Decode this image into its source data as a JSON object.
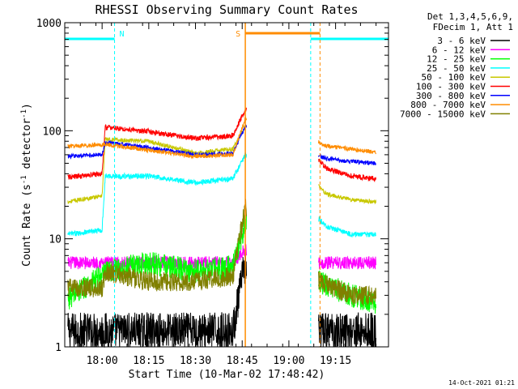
{
  "chart_data": {
    "type": "line",
    "title": "RHESSI Observing Summary Count Rates",
    "xlabel": "Start Time (10-Mar-02 17:48:42)",
    "ylabel_main": "Count Rate (s",
    "ylabel_sup1": "-1",
    "ylabel_mid": " detector",
    "ylabel_sup2": "-1",
    "ylabel_end": ")",
    "yscale": "log",
    "ylim": [
      1,
      1000
    ],
    "xlim_minutes": [
      1068,
      1172
    ],
    "x_ticks": [
      {
        "label": "18:00",
        "value": 1080
      },
      {
        "label": "18:15",
        "value": 1095
      },
      {
        "label": "18:30",
        "value": 1110
      },
      {
        "label": "18:45",
        "value": 1125
      },
      {
        "label": "19:00",
        "value": 1140
      },
      {
        "label": "19:15",
        "value": 1155
      }
    ],
    "y_ticks": [
      {
        "label": "1",
        "value": 1
      },
      {
        "label": "10",
        "value": 10
      },
      {
        "label": "100",
        "value": 100
      },
      {
        "label": "1000",
        "value": 1000
      }
    ],
    "legend_header": [
      "Det 1,3,4,5,6,9,",
      "FDecim 1, Att 1"
    ],
    "legend_placement": "right",
    "series": [
      {
        "name": "3 - 6 keV",
        "color": "#000000",
        "x": [
          1069,
          1082,
          1095,
          1110,
          1122,
          1124,
          1126,
          1150,
          1160,
          1168
        ],
        "y": [
          1.4,
          1.4,
          1.4,
          1.4,
          1.4,
          3,
          6,
          1.4,
          1.4,
          1.4
        ]
      },
      {
        "name": "6 - 12 keV",
        "color": "#ff00ff",
        "x": [
          1069,
          1082,
          1095,
          1110,
          1122,
          1126,
          1150,
          1160,
          1168
        ],
        "y": [
          6,
          6,
          6,
          6,
          6,
          8,
          6,
          6,
          6
        ]
      },
      {
        "name": "12 - 25 keV",
        "color": "#00ff00",
        "x": [
          1069,
          1082,
          1095,
          1110,
          1122,
          1126,
          1150,
          1160,
          1168
        ],
        "y": [
          2.8,
          5,
          6,
          5,
          5.5,
          14,
          4,
          3,
          2.5
        ]
      },
      {
        "name": "25 - 50 keV",
        "color": "#00ffff",
        "x": [
          1069,
          1080,
          1081,
          1095,
          1110,
          1122,
          1126,
          1149,
          1152,
          1160,
          1168
        ],
        "y": [
          11,
          12,
          38,
          38,
          33,
          36,
          60,
          16,
          13,
          11,
          11
        ]
      },
      {
        "name": "50 - 100 keV",
        "color": "#c8c800",
        "x": [
          1069,
          1080,
          1081,
          1095,
          1110,
          1122,
          1126,
          1149,
          1152,
          1160,
          1168
        ],
        "y": [
          22,
          25,
          83,
          80,
          62,
          68,
          110,
          32,
          26,
          23,
          22
        ]
      },
      {
        "name": "100 - 300 keV",
        "color": "#ff0000",
        "x": [
          1069,
          1080,
          1081,
          1095,
          1110,
          1122,
          1126,
          1149,
          1152,
          1160,
          1168
        ],
        "y": [
          37,
          40,
          108,
          98,
          85,
          90,
          160,
          56,
          45,
          38,
          36
        ]
      },
      {
        "name": "300 - 800 keV",
        "color": "#0000ff",
        "x": [
          1069,
          1080,
          1081,
          1095,
          1110,
          1122,
          1126,
          1149,
          1152,
          1160,
          1168
        ],
        "y": [
          58,
          60,
          78,
          70,
          60,
          62,
          110,
          60,
          55,
          52,
          50
        ]
      },
      {
        "name": "800 - 7000 keV",
        "color": "#ff8c00",
        "x": [
          1069,
          1080,
          1081,
          1095,
          1110,
          1122,
          1126,
          1149,
          1152,
          1160,
          1168
        ],
        "y": [
          72,
          74,
          75,
          66,
          58,
          60,
          130,
          80,
          72,
          68,
          63
        ]
      },
      {
        "name": "7000 - 15000 keV",
        "color": "#808000",
        "x": [
          1069,
          1080,
          1081,
          1095,
          1110,
          1122,
          1126,
          1150,
          1160,
          1168
        ],
        "y": [
          3.5,
          3.5,
          5,
          4,
          4,
          4.5,
          20,
          4,
          3,
          3
        ]
      }
    ],
    "annotations": [
      {
        "label": "N",
        "color": "#00ffff",
        "type": "night",
        "start": 1068,
        "end": 1084,
        "start_line": false,
        "end_line": true
      },
      {
        "label": "",
        "color": "#00ffff",
        "type": "night",
        "start": 1147,
        "end": 1172,
        "start_line": true,
        "end_line": true
      },
      {
        "label": "S",
        "color": "#ff8c00",
        "type": "saa",
        "start": 1126,
        "end": 1150,
        "start_line": true,
        "end_line": true
      }
    ]
  },
  "footer_date": "14-Oct-2021 01:21"
}
